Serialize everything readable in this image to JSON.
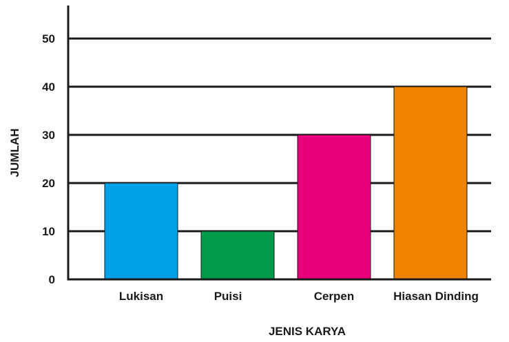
{
  "chart_data": {
    "type": "bar",
    "categories": [
      "Lukisan",
      "Puisi",
      "Cerpen",
      "Hiasan Dinding"
    ],
    "values": [
      20,
      10,
      30,
      40
    ],
    "colors": [
      "#00a0e6",
      "#009a4a",
      "#e6007a",
      "#ef8200"
    ],
    "title": "",
    "xlabel": "JENIS KARYA",
    "ylabel": "JUMLAH",
    "ylim": [
      0,
      50
    ],
    "yticks": [
      0,
      10,
      20,
      30,
      40,
      50
    ],
    "grid": true,
    "legend": "none"
  }
}
